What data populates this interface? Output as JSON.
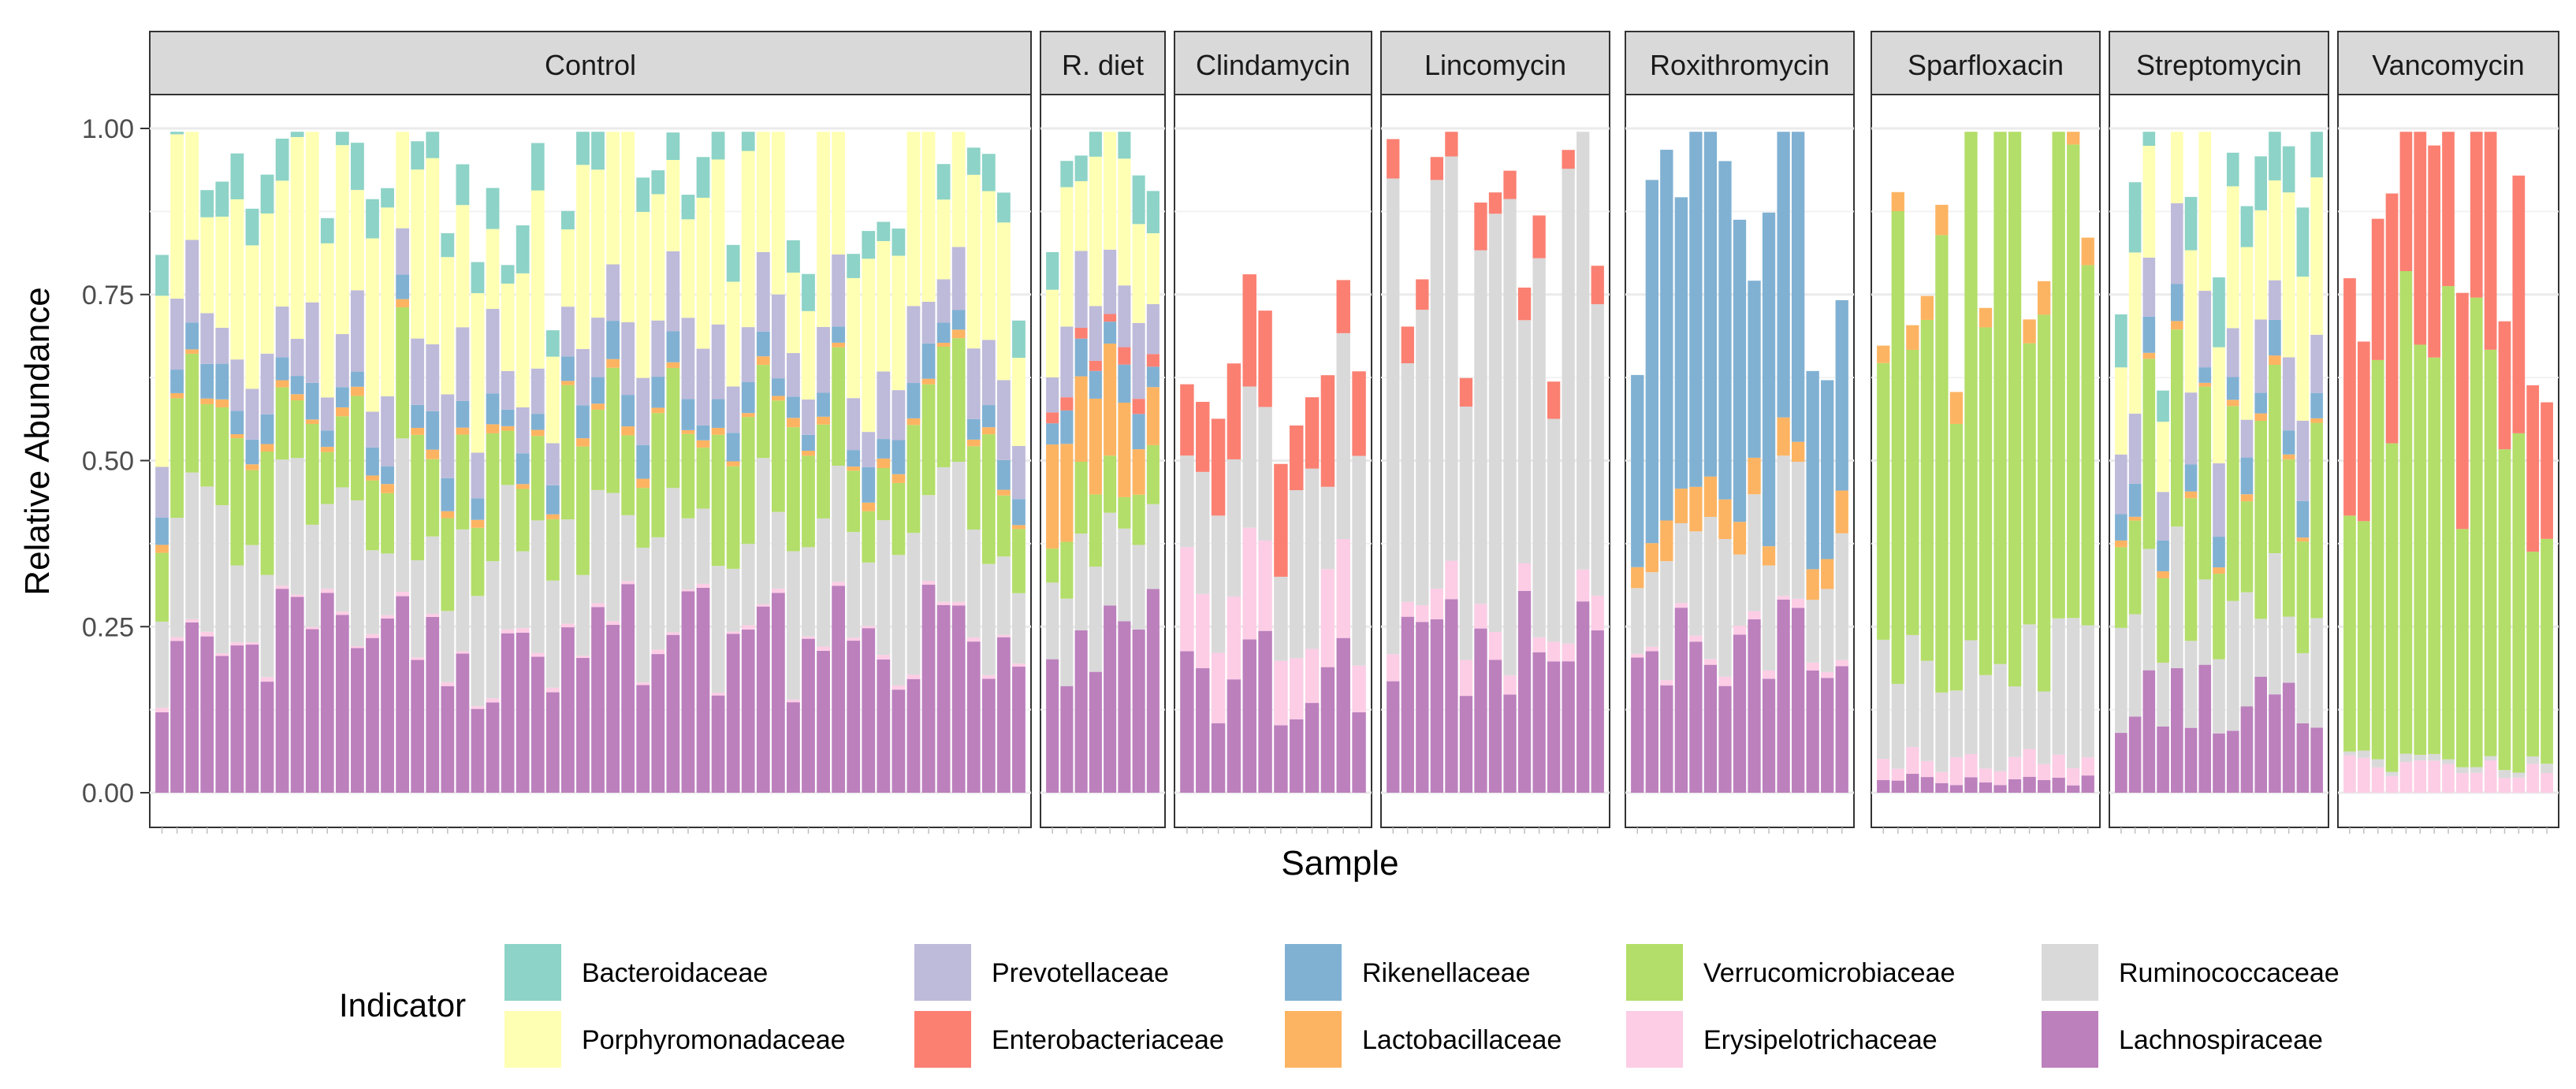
{
  "chart_data": {
    "type": "bar",
    "stacked": true,
    "xlabel": "Sample",
    "ylabel": "Relative Abundance",
    "ylim": [
      0,
      1
    ],
    "yticks": [
      "0.00",
      "0.25",
      "0.50",
      "0.75",
      "1.00"
    ],
    "legend_title": "Indicator",
    "legend_position": "bottom",
    "families": [
      {
        "name": "Bacteroidaceae",
        "color": "#8DD3C7"
      },
      {
        "name": "Porphyromonadaceae",
        "color": "#FFFFB3"
      },
      {
        "name": "Prevotellaceae",
        "color": "#BEBADA"
      },
      {
        "name": "Enterobacteriaceae",
        "color": "#FB8072"
      },
      {
        "name": "Rikenellaceae",
        "color": "#80B1D3"
      },
      {
        "name": "Lactobacillaceae",
        "color": "#FDB462"
      },
      {
        "name": "Verrucomicrobiaceae",
        "color": "#B3DE69"
      },
      {
        "name": "Erysipelotrichaceae",
        "color": "#FCCDE5"
      },
      {
        "name": "Ruminococcaceae",
        "color": "#D9D9D9"
      },
      {
        "name": "Lachnospiraceae",
        "color": "#BC80BD"
      }
    ],
    "stack_order_bottom_to_top": [
      "Lachnospiraceae",
      "Erysipelotrichaceae",
      "Ruminococcaceae",
      "Verrucomicrobiaceae",
      "Lactobacillaceae",
      "Rikenellaceae",
      "Enterobacteriaceae",
      "Prevotellaceae",
      "Porphyromonadaceae",
      "Bacteroidaceae"
    ],
    "facets": [
      {
        "label": "Control",
        "n_samples": 58,
        "approx_mean_composition": {
          "Lachnospiraceae": 0.22,
          "Erysipelotrichaceae": 0.005,
          "Ruminococcaceae": 0.16,
          "Verrucomicrobiaceae": 0.14,
          "Lactobacillaceae": 0.01,
          "Rikenellaceae": 0.04,
          "Enterobacteriaceae": 0.0,
          "Prevotellaceae": 0.09,
          "Porphyromonadaceae": 0.21,
          "Bacteroidaceae": 0.05
        }
      },
      {
        "label": "R. diet",
        "n_samples": 8,
        "approx_mean_composition": {
          "Lachnospiraceae": 0.22,
          "Erysipelotrichaceae": 0.0,
          "Ruminococcaceae": 0.12,
          "Verrucomicrobiaceae": 0.08,
          "Lactobacillaceae": 0.12,
          "Rikenellaceae": 0.04,
          "Enterobacteriaceae": 0.02,
          "Prevotellaceae": 0.08,
          "Porphyromonadaceae": 0.18,
          "Bacteroidaceae": 0.06
        }
      },
      {
        "label": "Clindamycin",
        "n_samples": 12,
        "approx_mean_composition": {
          "Lachnospiraceae": 0.17,
          "Erysipelotrichaceae": 0.12,
          "Ruminococcaceae": 0.22,
          "Verrucomicrobiaceae": 0.0,
          "Lactobacillaceae": 0.0,
          "Rikenellaceae": 0.0,
          "Enterobacteriaceae": 0.13,
          "Prevotellaceae": 0.0,
          "Porphyromonadaceae": 0.0,
          "Bacteroidaceae": 0.0
        }
      },
      {
        "label": "Lincomycin",
        "n_samples": 15,
        "approx_mean_composition": {
          "Lachnospiraceae": 0.21,
          "Erysipelotrichaceae": 0.04,
          "Ruminococcaceae": 0.55,
          "Verrucomicrobiaceae": 0.0,
          "Lactobacillaceae": 0.0,
          "Rikenellaceae": 0.0,
          "Enterobacteriaceae": 0.05,
          "Prevotellaceae": 0.0,
          "Porphyromonadaceae": 0.0,
          "Bacteroidaceae": 0.0
        }
      },
      {
        "label": "Roxithromycin",
        "n_samples": 15,
        "approx_mean_composition": {
          "Lachnospiraceae": 0.21,
          "Erysipelotrichaceae": 0.01,
          "Ruminococcaceae": 0.15,
          "Verrucomicrobiaceae": 0.0,
          "Lactobacillaceae": 0.05,
          "Rikenellaceae": 0.48,
          "Enterobacteriaceae": 0.0,
          "Prevotellaceae": 0.0,
          "Porphyromonadaceae": 0.0,
          "Bacteroidaceae": 0.0
        }
      },
      {
        "label": "Sparfloxacin",
        "n_samples": 15,
        "approx_mean_composition": {
          "Lachnospiraceae": 0.02,
          "Erysipelotrichaceae": 0.03,
          "Ruminococcaceae": 0.16,
          "Verrucomicrobiaceae": 0.62,
          "Lactobacillaceae": 0.04,
          "Rikenellaceae": 0.0,
          "Enterobacteriaceae": 0.0,
          "Prevotellaceae": 0.0,
          "Porphyromonadaceae": 0.0,
          "Bacteroidaceae": 0.0
        }
      },
      {
        "label": "Streptomycin",
        "n_samples": 15,
        "approx_mean_composition": {
          "Lachnospiraceae": 0.16,
          "Erysipelotrichaceae": 0.0,
          "Ruminococcaceae": 0.15,
          "Verrucomicrobiaceae": 0.22,
          "Lactobacillaceae": 0.01,
          "Rikenellaceae": 0.04,
          "Enterobacteriaceae": 0.0,
          "Prevotellaceae": 0.1,
          "Porphyromonadaceae": 0.19,
          "Bacteroidaceae": 0.08
        }
      },
      {
        "label": "Vancomycin",
        "n_samples": 15,
        "approx_mean_composition": {
          "Lachnospiraceae": 0.0,
          "Erysipelotrichaceae": 0.04,
          "Ruminococcaceae": 0.01,
          "Verrucomicrobiaceae": 0.53,
          "Lactobacillaceae": 0.0,
          "Rikenellaceae": 0.0,
          "Enterobacteriaceae": 0.27,
          "Prevotellaceae": 0.0,
          "Porphyromonadaceae": 0.0,
          "Bacteroidaceae": 0.0
        }
      }
    ]
  }
}
